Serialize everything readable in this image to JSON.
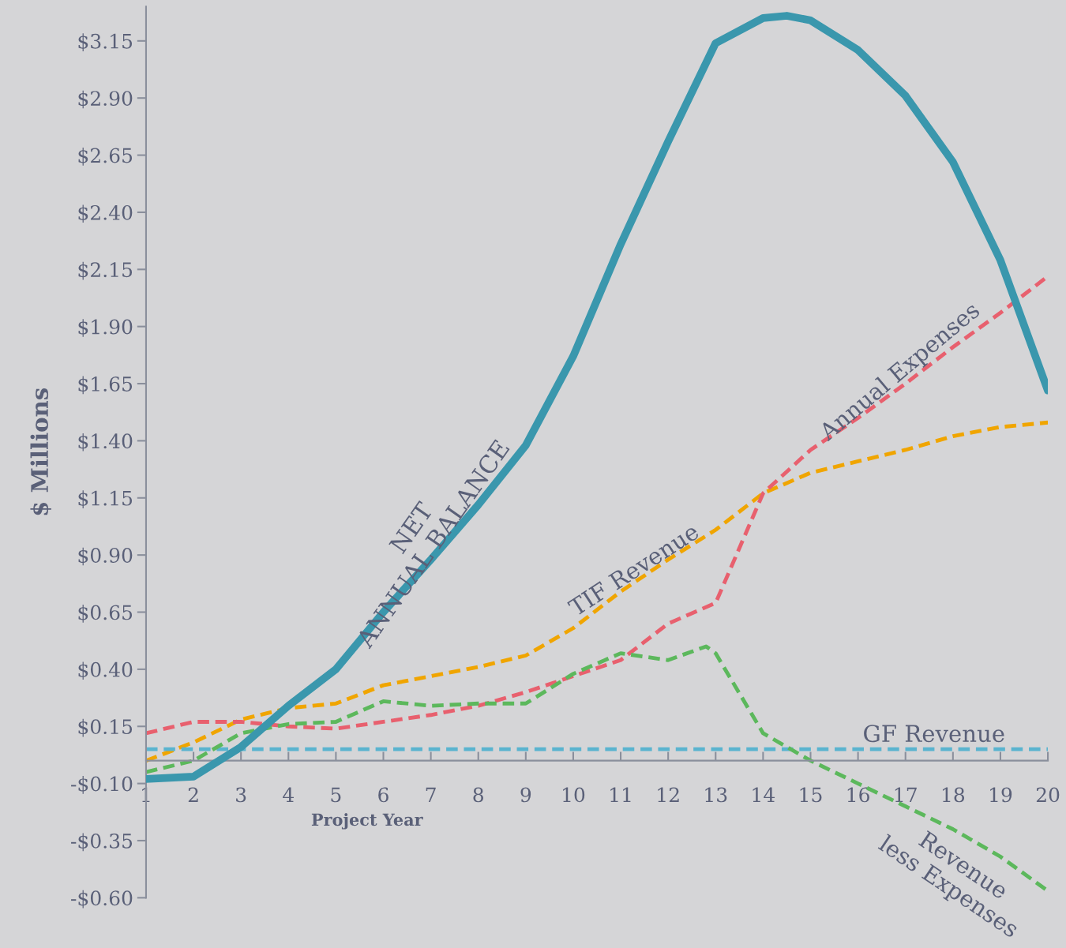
{
  "chart_data": {
    "type": "line",
    "xlabel": "Project Year",
    "ylabel": "$ Millions",
    "x": [
      1,
      2,
      3,
      4,
      5,
      6,
      7,
      8,
      9,
      10,
      11,
      12,
      13,
      14,
      15,
      16,
      17,
      18,
      19,
      20
    ],
    "series": [
      {
        "name": "NET\nANNUAL BALANCE",
        "color": "#3a97ad",
        "line_style": "solid",
        "x": [
          1,
          2,
          3,
          4,
          5,
          6,
          7,
          8,
          9,
          10,
          11,
          12,
          13,
          14,
          14.5,
          15,
          16,
          17,
          18,
          19,
          20
        ],
        "values": [
          -0.08,
          -0.07,
          0.06,
          0.24,
          0.4,
          0.65,
          0.88,
          1.12,
          1.38,
          1.77,
          2.26,
          2.71,
          3.14,
          3.25,
          3.26,
          3.24,
          3.11,
          2.91,
          2.62,
          2.19,
          1.62
        ]
      },
      {
        "name": "TIF Revenue",
        "color": "#f0a500",
        "line_style": "dashed",
        "values": [
          0.0,
          0.08,
          0.18,
          0.23,
          0.25,
          0.33,
          0.37,
          0.41,
          0.46,
          0.58,
          0.74,
          0.88,
          1.01,
          1.17,
          1.26,
          1.31,
          1.36,
          1.42,
          1.46,
          1.48
        ]
      },
      {
        "name": "Annual Expenses",
        "color": "#e8606e",
        "line_style": "dashed",
        "values": [
          0.12,
          0.17,
          0.17,
          0.15,
          0.14,
          0.17,
          0.2,
          0.24,
          0.3,
          0.37,
          0.44,
          0.6,
          0.69,
          1.17,
          1.36,
          1.5,
          1.65,
          1.81,
          1.96,
          2.12
        ]
      },
      {
        "name": "GF Revenue",
        "color": "#5ab4cf",
        "line_style": "dashed",
        "values": [
          0.05,
          0.05,
          0.05,
          0.05,
          0.05,
          0.05,
          0.05,
          0.05,
          0.05,
          0.05,
          0.05,
          0.05,
          0.05,
          0.05,
          0.05,
          0.05,
          0.05,
          0.05,
          0.05,
          0.05
        ]
      },
      {
        "name": "Revenue\nless Expenses",
        "color": "#5cb85c",
        "line_style": "dashed",
        "x": [
          1,
          2,
          3,
          4,
          5,
          6,
          7,
          8,
          9,
          10,
          11,
          12,
          12.8,
          13,
          14,
          15,
          16,
          17,
          18,
          19,
          20
        ],
        "values": [
          -0.05,
          0.0,
          0.12,
          0.16,
          0.17,
          0.26,
          0.24,
          0.25,
          0.25,
          0.38,
          0.47,
          0.44,
          0.5,
          0.47,
          0.12,
          0.0,
          -0.1,
          -0.2,
          -0.3,
          -0.42,
          -0.57
        ]
      }
    ],
    "xlim": [
      1,
      20
    ],
    "xticks": [
      1,
      2,
      3,
      4,
      5,
      6,
      7,
      8,
      9,
      10,
      11,
      12,
      13,
      14,
      15,
      16,
      17,
      18,
      19,
      20
    ],
    "ylim": [
      -0.6,
      3.3
    ],
    "yticks": [
      {
        "value": -0.6,
        "label": "-$0.60"
      },
      {
        "value": -0.35,
        "label": "-$0.35"
      },
      {
        "value": -0.1,
        "label": "-$0.10"
      },
      {
        "value": 0.15,
        "label": "$0.15"
      },
      {
        "value": 0.4,
        "label": "$0.40"
      },
      {
        "value": 0.65,
        "label": "$0.65"
      },
      {
        "value": 0.9,
        "label": "$0.90"
      },
      {
        "value": 1.15,
        "label": "$1.15"
      },
      {
        "value": 1.4,
        "label": "$1.40"
      },
      {
        "value": 1.65,
        "label": "$1.65"
      },
      {
        "value": 1.9,
        "label": "$1.90"
      },
      {
        "value": 2.15,
        "label": "$2.15"
      },
      {
        "value": 2.4,
        "label": "$2.40"
      },
      {
        "value": 2.65,
        "label": "$2.65"
      },
      {
        "value": 2.9,
        "label": "$2.90"
      },
      {
        "value": 3.15,
        "label": "$3.15"
      }
    ],
    "grid": false,
    "legend": false
  }
}
